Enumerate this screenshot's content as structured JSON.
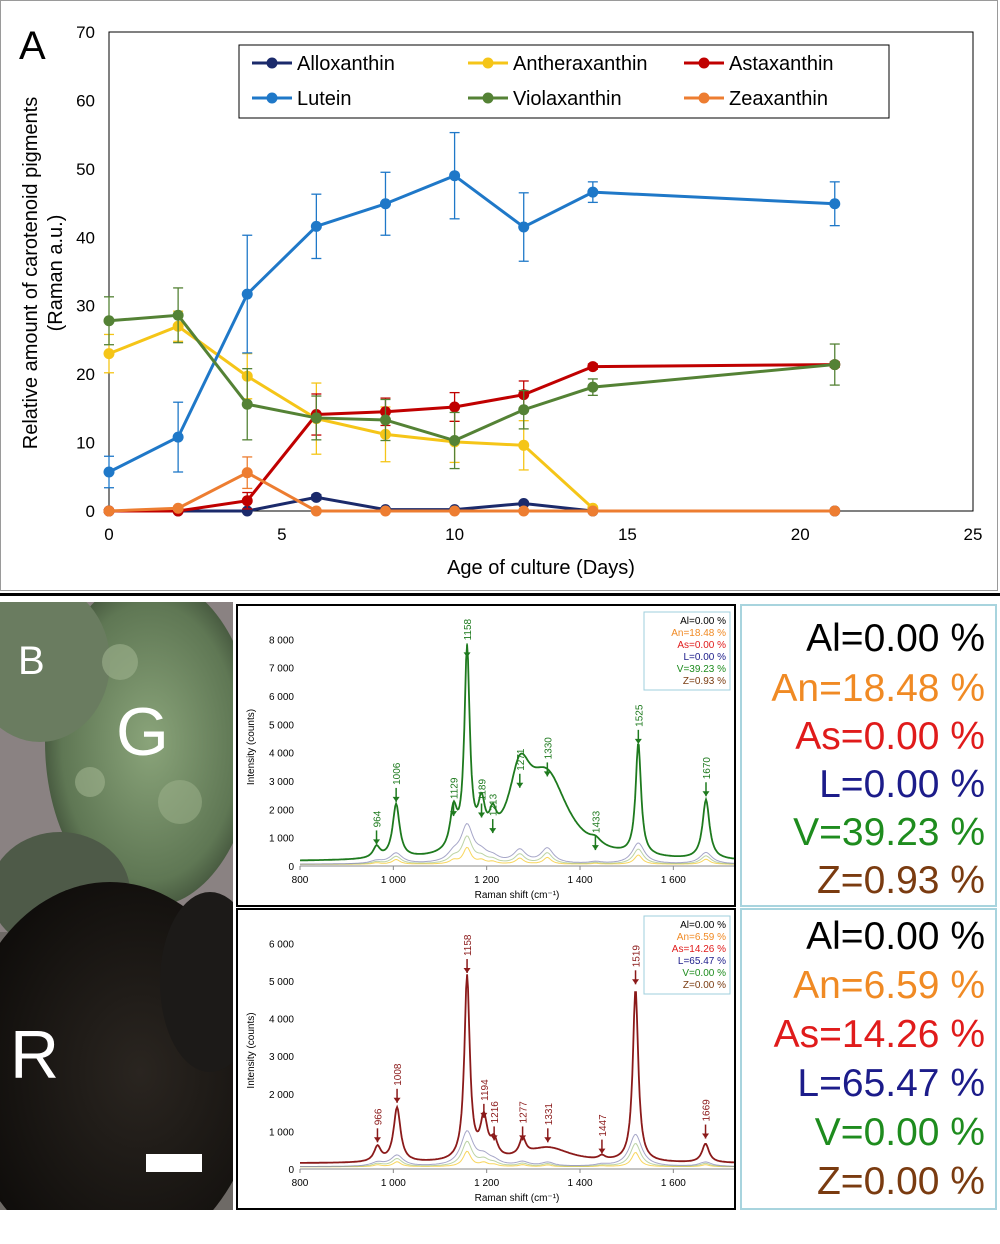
{
  "panel_a": {
    "label": "A",
    "legend": [
      "Alloxanthin",
      "Antheraxanthin",
      "Astaxanthin",
      "Lutein",
      "Violaxanthin",
      "Zeaxanthin"
    ]
  },
  "panel_b": {
    "label": "B",
    "region_g": "G",
    "region_r": "R"
  },
  "chart_data": [
    {
      "type": "line",
      "xlabel": "Age of culture (Days)",
      "ylabel": "Relative amount of carotenoid pigments (Raman a.u.)",
      "ylabel_line1": "Relative amount of carotenoid pigments",
      "ylabel_line2": "(Raman a.u.)",
      "xlim": [
        0,
        25
      ],
      "ylim": [
        0,
        70
      ],
      "xticks": [
        0,
        5,
        10,
        15,
        20,
        25
      ],
      "yticks": [
        0,
        10,
        20,
        30,
        40,
        50,
        60,
        70
      ],
      "legend_position": "top",
      "series": [
        {
          "name": "Alloxanthin",
          "color": "#1b2a6b",
          "x": [
            0,
            2,
            4,
            6,
            8,
            10,
            12,
            14,
            21
          ],
          "y": [
            0,
            0,
            0,
            2.0,
            0.2,
            0.2,
            1.1,
            0,
            0
          ],
          "err": [
            0,
            0,
            0,
            0.4,
            0,
            0,
            0.3,
            0,
            0
          ]
        },
        {
          "name": "Antheraxanthin",
          "color": "#f5c518",
          "x": [
            0,
            2,
            4,
            6,
            8,
            10,
            12,
            14
          ],
          "y": [
            23.0,
            27.0,
            19.7,
            13.5,
            11.2,
            10.1,
            9.6,
            0.4
          ],
          "err": [
            2.8,
            2.2,
            3.3,
            5.2,
            4.0,
            3.0,
            3.6,
            0.3
          ]
        },
        {
          "name": "Astaxanthin",
          "color": "#c00000",
          "x": [
            0,
            2,
            4,
            6,
            8,
            10,
            12,
            14,
            21
          ],
          "y": [
            0,
            0,
            1.5,
            14.1,
            14.5,
            15.2,
            17.0,
            21.1,
            21.4
          ],
          "err": [
            0,
            0,
            1.2,
            3.0,
            2.0,
            2.1,
            2.0,
            0.4,
            0.4
          ]
        },
        {
          "name": "Lutein",
          "color": "#1f78c8",
          "x": [
            0,
            2,
            4,
            6,
            8,
            10,
            12,
            14,
            21
          ],
          "y": [
            5.7,
            10.8,
            31.7,
            41.6,
            44.9,
            49.0,
            41.5,
            46.6,
            44.9
          ],
          "err": [
            2.3,
            5.1,
            8.6,
            4.7,
            4.6,
            6.3,
            5.0,
            1.5,
            3.2
          ]
        },
        {
          "name": "Violaxanthin",
          "color": "#548235",
          "x": [
            0,
            2,
            4,
            6,
            8,
            10,
            12,
            14,
            21
          ],
          "y": [
            27.8,
            28.6,
            15.6,
            13.6,
            13.3,
            10.3,
            14.8,
            18.1,
            21.4
          ],
          "err": [
            3.5,
            4.0,
            5.2,
            3.2,
            3.0,
            4.1,
            2.8,
            1.2,
            3.0
          ]
        },
        {
          "name": "Zeaxanthin",
          "color": "#ed7d31",
          "x": [
            0,
            2,
            4,
            6,
            8,
            10,
            12,
            14,
            21
          ],
          "y": [
            0,
            0.4,
            5.6,
            0,
            0,
            0,
            0,
            0,
            0
          ],
          "err": [
            0,
            0.3,
            2.3,
            0,
            0,
            0,
            0,
            0,
            0
          ]
        }
      ]
    },
    {
      "type": "line",
      "xlabel": "Raman shift (cm⁻¹)",
      "ylabel": "Intensity (counts)",
      "xlim": [
        800,
        1730
      ],
      "ylim": [
        0,
        8400
      ],
      "xticks": [
        800,
        1000,
        1200,
        1400,
        1600
      ],
      "xtick_labels": [
        "800",
        "1 000",
        "1 200",
        "1 400",
        "1 600"
      ],
      "yticks": [
        0,
        1000,
        2000,
        3000,
        4000,
        5000,
        6000,
        7000,
        8000
      ],
      "ytick_labels": [
        "0",
        "1 000",
        "2 000",
        "3 000",
        "4 000",
        "5 000",
        "6 000",
        "7 000",
        "8 000"
      ],
      "color": "#1e7a1e",
      "peaks": [
        {
          "x": 964,
          "y": 550
        },
        {
          "x": 1006,
          "y": 2050
        },
        {
          "x": 1129,
          "y": 1550
        },
        {
          "x": 1158,
          "y": 7150
        },
        {
          "x": 1189,
          "y": 1500
        },
        {
          "x": 1213,
          "y": 950
        },
        {
          "x": 1271,
          "y": 2550
        },
        {
          "x": 1330,
          "y": 2950
        },
        {
          "x": 1433,
          "y": 350
        },
        {
          "x": 1525,
          "y": 4100
        },
        {
          "x": 1670,
          "y": 2250
        }
      ],
      "legend": [
        "Al=0.00 %",
        "An=18.48 %",
        "As=0.00 %",
        "L=0.00 %",
        "V=39.23 %",
        "Z=0.93 %"
      ]
    },
    {
      "type": "line",
      "xlabel": "Raman shift (cm⁻¹)",
      "ylabel": "Intensity (counts)",
      "xlim": [
        800,
        1730
      ],
      "ylim": [
        0,
        6300
      ],
      "xticks": [
        800,
        1000,
        1200,
        1400,
        1600
      ],
      "xtick_labels": [
        "800",
        "1 000",
        "1 200",
        "1 400",
        "1 600"
      ],
      "yticks": [
        0,
        1000,
        2000,
        3000,
        4000,
        5000,
        6000
      ],
      "ytick_labels": [
        "0",
        "1 000",
        "2 000",
        "3 000",
        "4 000",
        "5 000",
        "6 000"
      ],
      "color": "#8b1a1a",
      "peaks": [
        {
          "x": 966,
          "y": 550
        },
        {
          "x": 1008,
          "y": 1600
        },
        {
          "x": 1158,
          "y": 5050
        },
        {
          "x": 1194,
          "y": 1200
        },
        {
          "x": 1216,
          "y": 600
        },
        {
          "x": 1277,
          "y": 600
        },
        {
          "x": 1331,
          "y": 550
        },
        {
          "x": 1447,
          "y": 250
        },
        {
          "x": 1519,
          "y": 4750
        },
        {
          "x": 1669,
          "y": 650
        }
      ],
      "legend": [
        "Al=0.00 %",
        "An=6.59 %",
        "As=14.26 %",
        "L=65.47 %",
        "V=0.00 %",
        "Z=0.00 %"
      ]
    }
  ],
  "composition_boxes": [
    {
      "lines": [
        "Al=0.00 %",
        "An=18.48 %",
        "As=0.00 %",
        "L=0.00 %",
        "V=39.23 %",
        "Z=0.93 %"
      ]
    },
    {
      "lines": [
        "Al=0.00 %",
        "An=6.59 %",
        "As=14.26 %",
        "L=65.47 %",
        "V=0.00 %",
        "Z=0.00 %"
      ]
    }
  ],
  "composition_colors": [
    "#000000",
    "#f08a24",
    "#e01b1b",
    "#1c1c8a",
    "#1e8c1e",
    "#7a3b10"
  ]
}
